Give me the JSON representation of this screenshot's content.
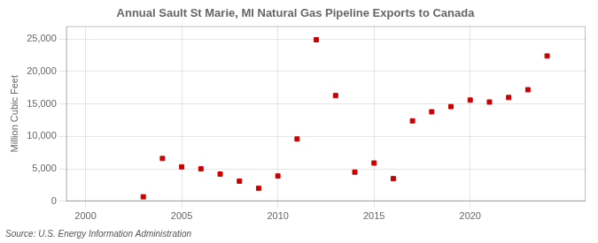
{
  "chart_data": {
    "type": "scatter",
    "title": "Annual Sault St Marie, MI Natural Gas Pipeline Exports to Canada",
    "ylabel": "Million Cubic Feet",
    "source": "Source: U.S. Energy Information Administration",
    "x": [
      2003,
      2004,
      2005,
      2006,
      2007,
      2008,
      2009,
      2010,
      2011,
      2012,
      2013,
      2014,
      2015,
      2016,
      2017,
      2018,
      2019,
      2020,
      2021,
      2022,
      2023,
      2024
    ],
    "values": [
      700,
      6600,
      5300,
      5000,
      4200,
      3100,
      2000,
      3900,
      9600,
      24900,
      16300,
      4500,
      5900,
      3500,
      12400,
      13800,
      14600,
      15600,
      15300,
      16000,
      17200,
      22400
    ],
    "color": "#cc0000",
    "marker": "square",
    "xlim": [
      1999,
      2026
    ],
    "xticks": [
      2000,
      2005,
      2010,
      2015,
      2020
    ],
    "ylim": [
      0,
      27000
    ],
    "yticks": [
      0,
      {
        "value": 5000,
        "label": "5,000"
      },
      {
        "value": 10000,
        "label": "10,000"
      },
      {
        "value": 15000,
        "label": "15,000"
      },
      {
        "value": 20000,
        "label": "20,000"
      },
      {
        "value": 25000,
        "label": "25,000"
      }
    ],
    "grid": true
  }
}
